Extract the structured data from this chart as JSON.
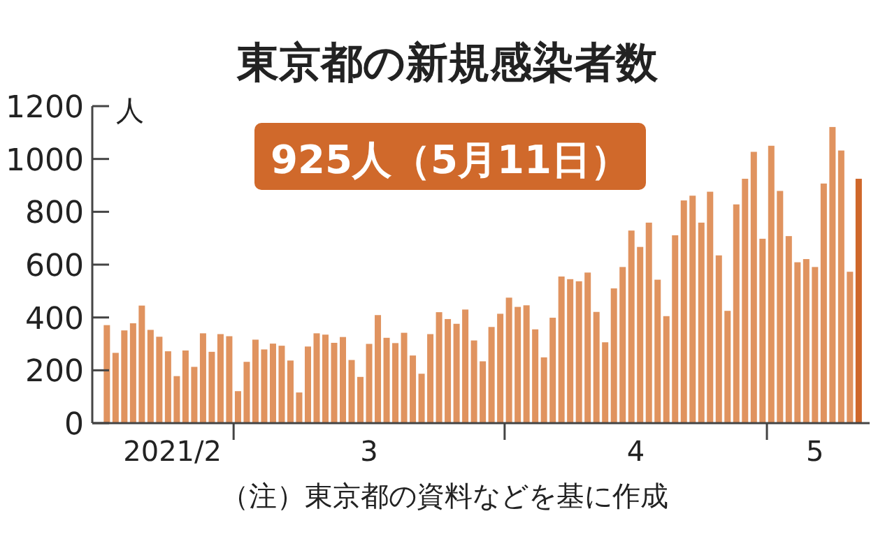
{
  "chart_data": {
    "type": "bar",
    "title": "東京都の新規感染者数",
    "ylabel": "人",
    "annotations": [
      "925人（5月11日）",
      "（注）東京都の資料などを基に作成"
    ],
    "x": [
      "2021-02-14",
      "2021-02-15",
      "2021-02-16",
      "2021-02-17",
      "2021-02-18",
      "2021-02-19",
      "2021-02-20",
      "2021-02-21",
      "2021-02-22",
      "2021-02-23",
      "2021-02-24",
      "2021-02-25",
      "2021-02-26",
      "2021-02-27",
      "2021-02-28",
      "2021-03-01",
      "2021-03-02",
      "2021-03-03",
      "2021-03-04",
      "2021-03-05",
      "2021-03-06",
      "2021-03-07",
      "2021-03-08",
      "2021-03-09",
      "2021-03-10",
      "2021-03-11",
      "2021-03-12",
      "2021-03-13",
      "2021-03-14",
      "2021-03-15",
      "2021-03-16",
      "2021-03-17",
      "2021-03-18",
      "2021-03-19",
      "2021-03-20",
      "2021-03-21",
      "2021-03-22",
      "2021-03-23",
      "2021-03-24",
      "2021-03-25",
      "2021-03-26",
      "2021-03-27",
      "2021-03-28",
      "2021-03-29",
      "2021-03-30",
      "2021-03-31",
      "2021-04-01",
      "2021-04-02",
      "2021-04-03",
      "2021-04-04",
      "2021-04-05",
      "2021-04-06",
      "2021-04-07",
      "2021-04-08",
      "2021-04-09",
      "2021-04-10",
      "2021-04-11",
      "2021-04-12",
      "2021-04-13",
      "2021-04-14",
      "2021-04-15",
      "2021-04-16",
      "2021-04-17",
      "2021-04-18",
      "2021-04-19",
      "2021-04-20",
      "2021-04-21",
      "2021-04-22",
      "2021-04-23",
      "2021-04-24",
      "2021-04-25",
      "2021-04-26",
      "2021-04-27",
      "2021-04-28",
      "2021-04-29",
      "2021-04-30",
      "2021-05-01",
      "2021-05-02",
      "2021-05-03",
      "2021-05-04",
      "2021-05-05",
      "2021-05-06",
      "2021-05-07",
      "2021-05-08",
      "2021-05-09",
      "2021-05-10",
      "2021-05-11"
    ],
    "values": [
      371,
      266,
      351,
      378,
      445,
      353,
      327,
      272,
      178,
      275,
      213,
      340,
      270,
      337,
      329,
      121,
      232,
      316,
      279,
      301,
      293,
      237,
      116,
      290,
      340,
      335,
      304,
      326,
      239,
      175,
      300,
      409,
      323,
      303,
      342,
      256,
      187,
      337,
      420,
      394,
      376,
      430,
      313,
      234,
      364,
      414,
      475,
      440,
      446,
      355,
      249,
      399,
      555,
      545,
      537,
      570,
      421,
      306,
      510,
      591,
      729,
      667,
      759,
      543,
      405,
      711,
      843,
      861,
      759,
      876,
      635,
      425,
      828,
      925,
      1027,
      698,
      1050,
      879,
      708,
      609,
      621,
      591,
      907,
      1121,
      1032,
      573,
      925
    ],
    "colors": [
      "#e0935f",
      "#e0935f",
      "#e0935f",
      "#e0935f",
      "#e0935f",
      "#e0935f",
      "#e0935f",
      "#e0935f",
      "#e0935f",
      "#e0935f",
      "#e0935f",
      "#e0935f",
      "#e0935f",
      "#e0935f",
      "#e0935f",
      "#e0935f",
      "#e0935f",
      "#e0935f",
      "#e0935f",
      "#e0935f",
      "#e0935f",
      "#e0935f",
      "#e0935f",
      "#e0935f",
      "#e0935f",
      "#e0935f",
      "#e0935f",
      "#e0935f",
      "#e0935f",
      "#e0935f",
      "#e0935f",
      "#e0935f",
      "#e0935f",
      "#e0935f",
      "#e0935f",
      "#e0935f",
      "#e0935f",
      "#e0935f",
      "#e0935f",
      "#e0935f",
      "#e0935f",
      "#e0935f",
      "#e0935f",
      "#e0935f",
      "#e0935f",
      "#e0935f",
      "#e0935f",
      "#e0935f",
      "#e0935f",
      "#e0935f",
      "#e0935f",
      "#e0935f",
      "#e0935f",
      "#e0935f",
      "#e0935f",
      "#e0935f",
      "#e0935f",
      "#e0935f",
      "#e0935f",
      "#e0935f",
      "#e0935f",
      "#e0935f",
      "#e0935f",
      "#e0935f",
      "#e0935f",
      "#e0935f",
      "#e0935f",
      "#e0935f",
      "#e0935f",
      "#e0935f",
      "#e0935f",
      "#e0935f",
      "#e0935f",
      "#e0935f",
      "#e0935f",
      "#e0935f",
      "#e0935f",
      "#e0935f",
      "#e0935f",
      "#e0935f",
      "#e0935f",
      "#e0935f",
      "#e0935f",
      "#e0935f",
      "#e0935f",
      "#e0935f",
      "#cf672a"
    ],
    "xlim": [
      "2021-02-12T08:00",
      "2021-05-12T06:00"
    ],
    "xticks": [
      {
        "value": "2021-02-21T12:00",
        "label": "2021/2"
      },
      {
        "value": "2021-02-28T12:00",
        "label": null
      },
      {
        "value": "2021-03-16",
        "label": "3"
      },
      {
        "value": "2021-03-31T12:00",
        "label": null
      },
      {
        "value": "2021-04-15T12:00",
        "label": "4"
      },
      {
        "value": "2021-04-30T12:00",
        "label": null
      },
      {
        "value": "2021-05-06",
        "label": "5"
      }
    ],
    "ylim": [
      0,
      1200
    ],
    "yticks": [
      0,
      200,
      400,
      600,
      800,
      1000,
      1200
    ]
  }
}
